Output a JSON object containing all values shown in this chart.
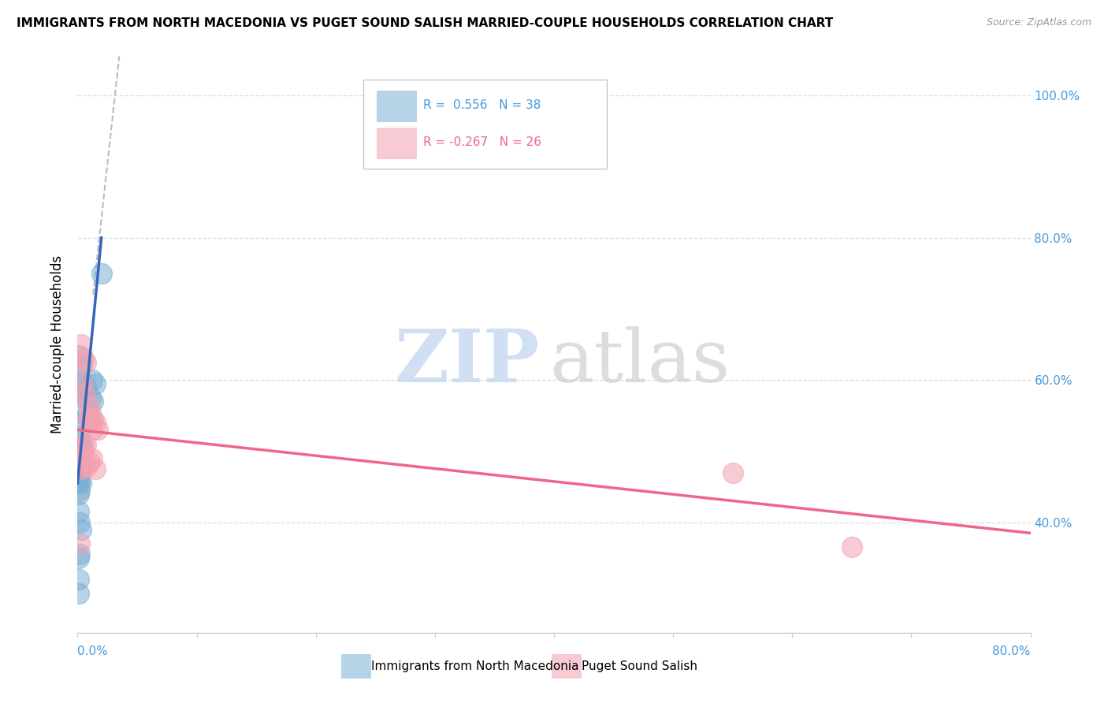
{
  "title": "IMMIGRANTS FROM NORTH MACEDONIA VS PUGET SOUND SALISH MARRIED-COUPLE HOUSEHOLDS CORRELATION CHART",
  "source": "Source: ZipAtlas.com",
  "ylabel": "Married-couple Households",
  "blue_R": 0.556,
  "blue_N": 38,
  "pink_R": -0.267,
  "pink_N": 26,
  "legend_blue": "Immigrants from North Macedonia",
  "legend_pink": "Puget Sound Salish",
  "blue_color": "#7BAFD4",
  "pink_color": "#F4A0B0",
  "blue_line_color": "#3366BB",
  "pink_line_color": "#EE6688",
  "dashed_line_color": "#BBBBBB",
  "blue_scatter": [
    [
      0.001,
      0.635
    ],
    [
      0.002,
      0.595
    ],
    [
      0.003,
      0.6
    ],
    [
      0.004,
      0.62
    ],
    [
      0.005,
      0.575
    ],
    [
      0.006,
      0.58
    ],
    [
      0.007,
      0.59
    ],
    [
      0.008,
      0.555
    ],
    [
      0.009,
      0.545
    ],
    [
      0.01,
      0.545
    ],
    [
      0.011,
      0.575
    ],
    [
      0.012,
      0.6
    ],
    [
      0.013,
      0.57
    ],
    [
      0.015,
      0.595
    ],
    [
      0.02,
      0.75
    ],
    [
      0.001,
      0.54
    ],
    [
      0.002,
      0.52
    ],
    [
      0.003,
      0.51
    ],
    [
      0.004,
      0.505
    ],
    [
      0.001,
      0.5
    ],
    [
      0.002,
      0.49
    ],
    [
      0.001,
      0.47
    ],
    [
      0.002,
      0.47
    ],
    [
      0.003,
      0.5
    ],
    [
      0.001,
      0.44
    ],
    [
      0.002,
      0.445
    ],
    [
      0.001,
      0.415
    ],
    [
      0.002,
      0.4
    ],
    [
      0.003,
      0.39
    ],
    [
      0.001,
      0.35
    ],
    [
      0.002,
      0.355
    ],
    [
      0.001,
      0.32
    ],
    [
      0.001,
      0.3
    ],
    [
      0.0,
      0.49
    ],
    [
      0.0,
      0.47
    ],
    [
      0.001,
      0.455
    ],
    [
      0.002,
      0.46
    ],
    [
      0.003,
      0.455
    ]
  ],
  "pink_scatter": [
    [
      0.003,
      0.65
    ],
    [
      0.005,
      0.63
    ],
    [
      0.007,
      0.625
    ],
    [
      0.004,
      0.595
    ],
    [
      0.006,
      0.58
    ],
    [
      0.009,
      0.565
    ],
    [
      0.011,
      0.555
    ],
    [
      0.013,
      0.545
    ],
    [
      0.01,
      0.545
    ],
    [
      0.015,
      0.54
    ],
    [
      0.017,
      0.53
    ],
    [
      0.008,
      0.545
    ],
    [
      0.012,
      0.53
    ],
    [
      0.005,
      0.51
    ],
    [
      0.007,
      0.51
    ],
    [
      0.003,
      0.5
    ],
    [
      0.005,
      0.495
    ],
    [
      0.01,
      0.485
    ],
    [
      0.012,
      0.49
    ],
    [
      0.004,
      0.475
    ],
    [
      0.006,
      0.48
    ],
    [
      0.008,
      0.48
    ],
    [
      0.015,
      0.475
    ],
    [
      0.55,
      0.47
    ],
    [
      0.65,
      0.365
    ],
    [
      0.002,
      0.37
    ]
  ],
  "xlim_min": 0.0,
  "xlim_max": 0.8,
  "ylim_min": 0.245,
  "ylim_max": 1.055,
  "yticks": [
    0.4,
    0.6,
    0.8,
    1.0
  ],
  "ytick_labels": [
    "40.0%",
    "60.0%",
    "80.0%",
    "100.0%"
  ],
  "blue_trend_x": [
    0.0,
    0.02
  ],
  "blue_trend_y": [
    0.455,
    0.8
  ],
  "dashed_trend_x": [
    0.013,
    0.035
  ],
  "dashed_trend_y": [
    0.72,
    1.055
  ],
  "pink_trend_x": [
    0.0,
    0.8
  ],
  "pink_trend_y": [
    0.53,
    0.385
  ],
  "watermark_zip_color": "#C5D8F0",
  "watermark_atlas_color": "#CCCCCC",
  "grid_color": "#DDDDDD",
  "axis_color": "#CCCCCC",
  "label_color": "#4499DD",
  "title_fontsize": 11,
  "source_fontsize": 9,
  "tick_label_fontsize": 11,
  "legend_fontsize": 11
}
